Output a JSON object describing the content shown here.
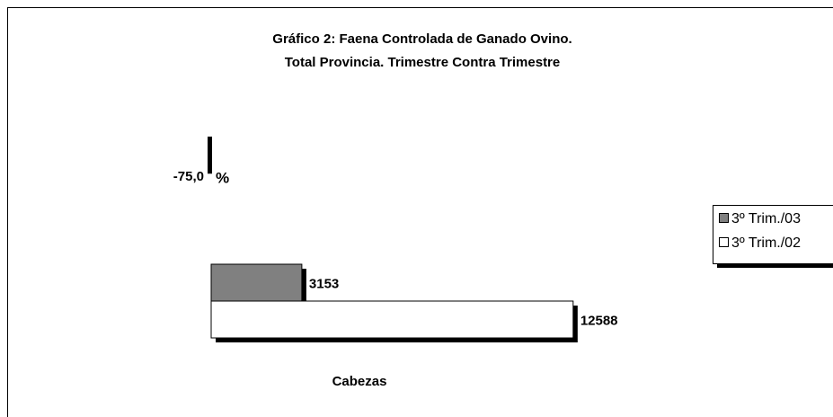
{
  "chart_data": [
    {
      "type": "hbar",
      "title": "Gráfico 2: Faena Controlada de Ganado Ovino.",
      "subtitle": "Total Provincia. Trimestre Contra Trimestre",
      "categories": [
        "Cabezas"
      ],
      "series": [
        {
          "name": "3º Trim./03",
          "color": "#808080",
          "values": [
            3153
          ]
        },
        {
          "name": "3º Trim./02",
          "color": "#ffffff",
          "values": [
            12588
          ]
        }
      ],
      "legend": "right"
    },
    {
      "type": "vbar",
      "categories": [
        "%"
      ],
      "values": [
        -75.0
      ],
      "value_labels": [
        "-75,0"
      ],
      "color": "#000000"
    }
  ]
}
